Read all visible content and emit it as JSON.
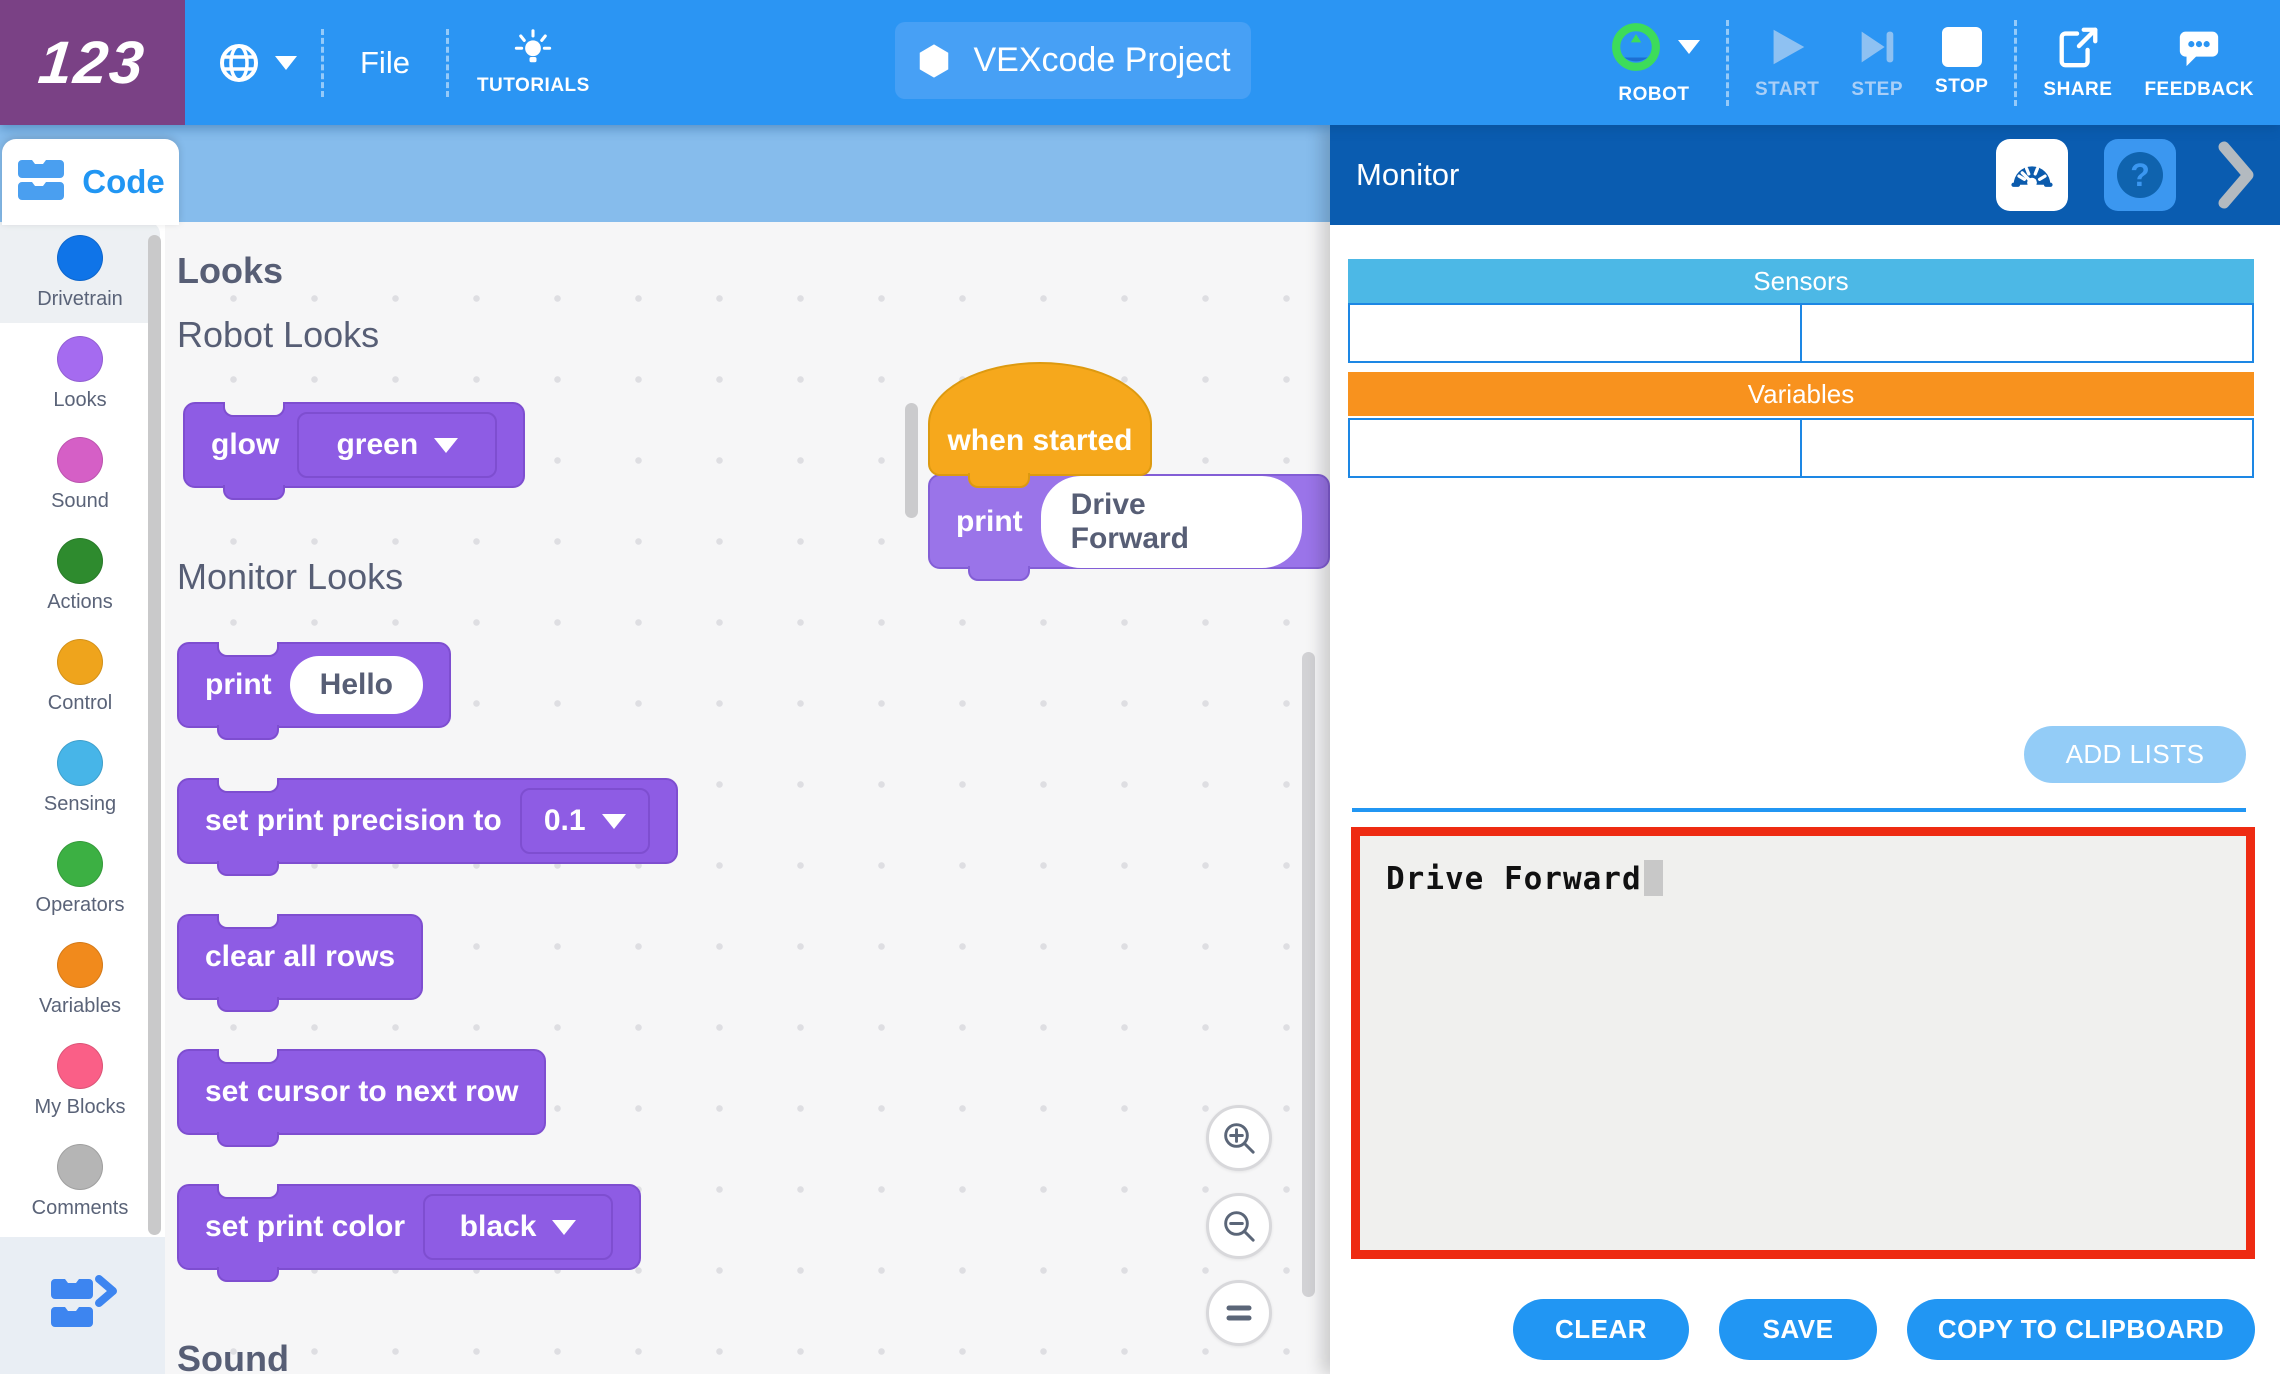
{
  "app": {
    "logo": "123",
    "title": "VEXcode Project"
  },
  "topbar": {
    "file": "File",
    "tutorials": "TUTORIALS",
    "robot": "ROBOT",
    "start": "START",
    "step": "STEP",
    "stop": "STOP",
    "share": "SHARE",
    "feedback": "FEEDBACK"
  },
  "sidebar": {
    "tab": "Code",
    "categories": [
      {
        "label": "Drivetrain",
        "color": "#0f74e8",
        "selected": true
      },
      {
        "label": "Looks",
        "color": "#a56bf0",
        "selected": false
      },
      {
        "label": "Sound",
        "color": "#d55fc6",
        "selected": false
      },
      {
        "label": "Actions",
        "color": "#2e8b2e",
        "selected": false
      },
      {
        "label": "Control",
        "color": "#efa41c",
        "selected": false
      },
      {
        "label": "Sensing",
        "color": "#47b5e8",
        "selected": false
      },
      {
        "label": "Operators",
        "color": "#3cb043",
        "selected": false
      },
      {
        "label": "Variables",
        "color": "#f18a1c",
        "selected": false
      },
      {
        "label": "My Blocks",
        "color": "#fa5f87",
        "selected": false
      },
      {
        "label": "Comments",
        "color": "#b5b5b5",
        "selected": false
      }
    ]
  },
  "palette": {
    "heading": "Looks",
    "group1": "Robot Looks",
    "group2": "Monitor Looks",
    "next_section": "Sound",
    "blocks": {
      "glow": {
        "label": "glow",
        "value": "green"
      },
      "print": {
        "label": "print",
        "value": "Hello"
      },
      "precision": {
        "label": "set print precision to",
        "value": "0.1"
      },
      "clear": {
        "label": "clear all rows"
      },
      "cursor": {
        "label": "set cursor to next row"
      },
      "color": {
        "label": "set print color",
        "value": "black"
      }
    }
  },
  "workspace": {
    "hat_label": "when started",
    "print": {
      "label": "print",
      "value": "Drive Forward"
    }
  },
  "monitor": {
    "title": "Monitor",
    "help_glyph": "?",
    "sensors_header": "Sensors",
    "variables_header": "Variables",
    "add_lists": "ADD LISTS",
    "console_text": "Drive Forward",
    "clear": "CLEAR",
    "save": "SAVE",
    "copy": "COPY TO CLIPBOARD"
  },
  "colors": {
    "topbar_blue": "#2b95f3",
    "logo_purple": "#7a4185",
    "band_blue": "#86bcec",
    "monitor_header": "#0a5cb0",
    "sensors_blue": "#4cb8e6",
    "variables_orange": "#f8921e",
    "cell_border": "#1d87e4",
    "add_lists_blue": "#93ccf7",
    "console_border_red": "#ee2b12",
    "action_blue": "#2196f3",
    "palette_block_purple": "#8e5ce4",
    "workspace_block_purple": "#9a74e9",
    "hat_yellow": "#f6a81c"
  }
}
